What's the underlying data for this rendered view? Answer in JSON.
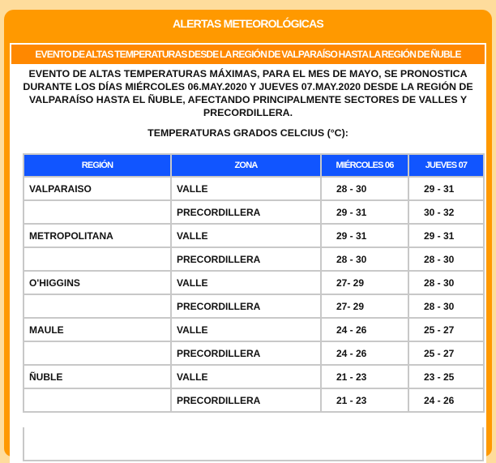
{
  "title": "ALERTAS METEOROLÓGICAS",
  "event_title": "EVENTO DE ALTAS TEMPERATURAS DESDE LA REGIÓN DE VALPARAÍSO HASTA LA REGIÓN DE ÑUBLE",
  "description": "EVENTO DE ALTAS TEMPERATURAS MÁXIMAS, PARA EL MES DE MAYO, SE PRONOSTICA DURANTE LOS DÍAS MIÉRCOLES 06.MAY.2020 Y JUEVES 07.MAY.2020 DESDE LA REGIÓN DE VALPARAÍSO HASTA EL ÑUBLE, AFECTANDO PRINCIPALMENTE SECTORES DE VALLES Y PRECORDILLERA.",
  "table_title": "TEMPERATURAS GRADOS CELCIUS (°C):",
  "colors": {
    "panel": "#ff9900",
    "subbar": "#ff8800",
    "header": "#1155ff",
    "background": "#fedc9c"
  },
  "table": {
    "headers": [
      "REGIÓN",
      "ZONA",
      "MIÉRCOLES 06",
      "JUEVES 07"
    ],
    "rows": [
      [
        "VALPARAISO",
        "VALLE",
        "28 - 30",
        "29 - 31"
      ],
      [
        "",
        "PRECORDILLERA",
        "29 - 31",
        "30 - 32"
      ],
      [
        "METROPOLITANA",
        "VALLE",
        "29 - 31",
        "29 - 31"
      ],
      [
        "",
        "PRECORDILLERA",
        "28 - 30",
        "28 - 30"
      ],
      [
        "O'HIGGINS",
        "VALLE",
        "27- 29",
        "28 - 30"
      ],
      [
        "",
        "PRECORDILLERA",
        "27- 29",
        "28 - 30"
      ],
      [
        "MAULE",
        "VALLE",
        "24 - 26",
        "25 - 27"
      ],
      [
        "",
        "PRECORDILLERA",
        "24 - 26",
        "25 - 27"
      ],
      [
        "ÑUBLE",
        "VALLE",
        "21 - 23",
        "23 - 25"
      ],
      [
        "",
        "PRECORDILLERA",
        "21 - 23",
        "24 - 26"
      ]
    ]
  }
}
